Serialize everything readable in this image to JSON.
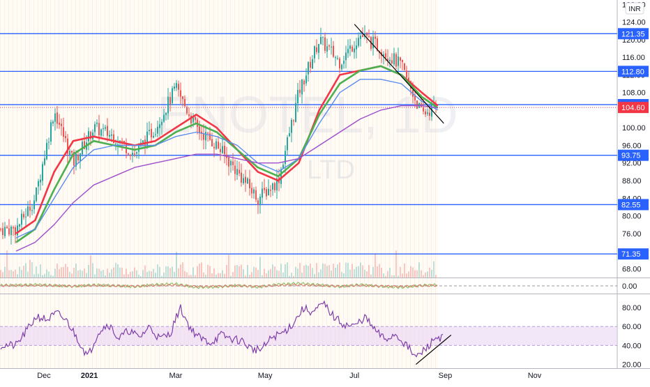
{
  "watermark": {
    "symbol": "ENOTEL, 1D",
    "name": "LTD"
  },
  "currency_button": "INR",
  "colors": {
    "level_line": "#2962ff",
    "last_price": "#f23645",
    "sma_red": "#f23645",
    "sma_green": "#4caf50",
    "sma_light_green": "#8ee06a",
    "sma_blue": "#5b8def",
    "sma_purple": "#9c4fcc",
    "candle_up": "#26a69a",
    "candle_down": "#ef5350",
    "rsi_line": "#7e3fa8",
    "rsi_band": "#e9d5f5",
    "trendline": "#000000"
  },
  "chart_data": [
    {
      "type": "line",
      "title": "",
      "xlabel": "",
      "ylabel": "",
      "x_tick_labels": [
        "Dec",
        "2021",
        "Mar",
        "May",
        "Jul",
        "Sep",
        "Nov"
      ],
      "y_tick_labels": [
        "68.00",
        "72.00",
        "76.00",
        "80.00",
        "84.00",
        "88.00",
        "92.00",
        "96.00",
        "100.00",
        "104.00",
        "108.00",
        "112.00",
        "116.00",
        "120.00",
        "124.00",
        "128.00"
      ],
      "ylim": [
        66,
        129
      ],
      "price_levels": [
        {
          "label": "121.35",
          "value": 121.35
        },
        {
          "label": "112.80",
          "value": 112.8
        },
        {
          "label": "105.25",
          "value": 105.25
        },
        {
          "label": "93.75",
          "value": 93.75
        },
        {
          "label": "82.55",
          "value": 82.55
        },
        {
          "label": "71.35",
          "value": 71.35
        }
      ],
      "last_price": {
        "label": "104.60",
        "value": 104.6
      },
      "trendline": {
        "from": {
          "date": "2021-07-01",
          "value": 123.5
        },
        "to": {
          "date": "2021-08-31",
          "value": 101.0
        }
      },
      "x": [
        "2020-11-12",
        "2020-11-25",
        "2020-12-08",
        "2020-12-21",
        "2021-01-04",
        "2021-01-18",
        "2021-02-01",
        "2021-02-15",
        "2021-03-01",
        "2021-03-15",
        "2021-03-29",
        "2021-04-12",
        "2021-04-26",
        "2021-05-10",
        "2021-05-24",
        "2021-06-07",
        "2021-06-21",
        "2021-07-05",
        "2021-07-19",
        "2021-08-02",
        "2021-08-16",
        "2021-08-27"
      ],
      "series": [
        {
          "values": [
            77,
            84,
            104,
            92,
            100,
            98,
            94,
            100,
            109,
            100,
            96,
            90,
            84,
            88,
            108,
            120,
            115,
            121,
            118,
            114,
            103,
            105
          ]
        }
      ],
      "moving_averages": [
        {
          "values": [
            76,
            79,
            90,
            97,
            98,
            97,
            96,
            97,
            100,
            103,
            100,
            95,
            90,
            88,
            92,
            104,
            112,
            113,
            114,
            112,
            108,
            105
          ]
        },
        {
          "values": [
            74,
            77,
            86,
            94,
            97,
            96,
            95,
            96,
            99,
            101,
            99,
            95,
            91,
            89,
            93,
            103,
            110,
            113,
            114,
            112,
            107,
            104.5
          ]
        },
        {
          "values": [
            75,
            77,
            84,
            91,
            95,
            96,
            96,
            96,
            98,
            99,
            98,
            96,
            92,
            90,
            93,
            101,
            108,
            111,
            111,
            110,
            106,
            104
          ]
        },
        {
          "values": [
            72,
            74,
            78,
            83,
            87,
            89,
            91,
            92,
            93,
            94,
            94,
            93,
            92,
            92,
            93,
            96,
            99,
            102,
            104,
            105,
            105,
            104.5
          ]
        }
      ]
    },
    {
      "type": "line",
      "title": "",
      "y_tick_labels": [
        "0.00"
      ],
      "ylim": [
        -3,
        3
      ],
      "values": [
        0.3,
        0.5,
        0.2,
        -0.2,
        0.4,
        0.1,
        -0.3,
        0.5,
        0.8,
        -0.6,
        -0.4,
        0.2,
        -0.5,
        0.6,
        1.0,
        0.4,
        -0.3,
        0.5,
        -0.2,
        -0.6,
        0.2,
        0.4
      ]
    },
    {
      "type": "line",
      "title": "",
      "y_tick_labels": [
        "20.00",
        "40.00",
        "60.00",
        "80.00"
      ],
      "ylim": [
        16,
        94
      ],
      "band": [
        40,
        60
      ],
      "x": [
        "2020-11-12",
        "2020-11-19",
        "2020-11-26",
        "2020-12-03",
        "2020-12-10",
        "2020-12-17",
        "2020-12-24",
        "2020-12-31",
        "2021-01-07",
        "2021-01-14",
        "2021-01-21",
        "2021-01-28",
        "2021-02-04",
        "2021-02-11",
        "2021-02-18",
        "2021-02-25",
        "2021-03-04",
        "2021-03-11",
        "2021-03-18",
        "2021-03-25",
        "2021-04-01",
        "2021-04-08",
        "2021-04-15",
        "2021-04-22",
        "2021-04-29",
        "2021-05-06",
        "2021-05-13",
        "2021-05-20",
        "2021-05-27",
        "2021-06-03",
        "2021-06-10",
        "2021-06-17",
        "2021-06-24",
        "2021-07-01",
        "2021-07-08",
        "2021-07-15",
        "2021-07-22",
        "2021-07-29",
        "2021-08-05",
        "2021-08-12",
        "2021-08-19",
        "2021-08-26",
        "2021-08-31"
      ],
      "values": [
        40,
        55,
        71,
        67,
        74,
        65,
        47,
        28,
        54,
        63,
        47,
        56,
        48,
        60,
        47,
        52,
        80,
        58,
        47,
        43,
        51,
        47,
        45,
        36,
        36,
        49,
        53,
        63,
        79,
        75,
        84,
        70,
        62,
        60,
        70,
        56,
        46,
        52,
        41,
        27,
        37,
        49,
        48
      ],
      "trendline": {
        "from": {
          "date": "2021-08-12",
          "value": 20
        },
        "to": {
          "date": "2021-09-05",
          "value": 51
        }
      }
    }
  ]
}
